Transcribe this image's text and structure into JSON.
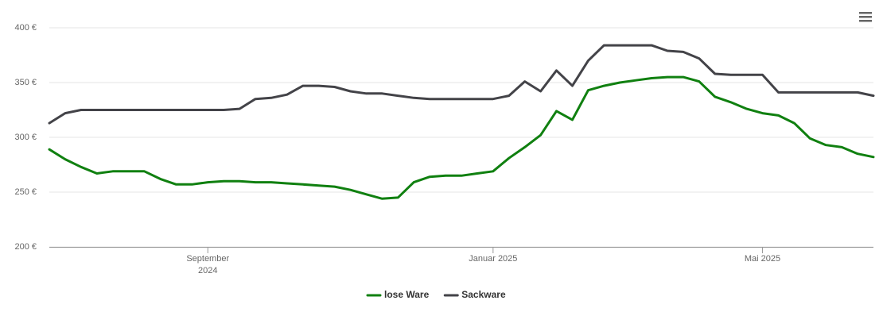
{
  "chart_data": {
    "type": "line",
    "categories": [
      null,
      null,
      null,
      null,
      null,
      null,
      null,
      null,
      null,
      null,
      "September 2024",
      null,
      null,
      null,
      null,
      null,
      null,
      null,
      null,
      null,
      null,
      null,
      null,
      null,
      null,
      null,
      null,
      null,
      "Januar 2025",
      null,
      null,
      null,
      null,
      null,
      null,
      null,
      null,
      null,
      null,
      null,
      null,
      null,
      null,
      null,
      null,
      "Mai 2025",
      null,
      null,
      null,
      null,
      null,
      null,
      null
    ],
    "series": [
      {
        "name": "lose Ware",
        "color": "#108010",
        "values": [
          289,
          280,
          273,
          267,
          269,
          269,
          269,
          262,
          257,
          257,
          259,
          260,
          260,
          259,
          259,
          258,
          257,
          256,
          255,
          252,
          248,
          244,
          245,
          259,
          264,
          265,
          265,
          267,
          269,
          281,
          291,
          302,
          324,
          316,
          343,
          347,
          350,
          352,
          354,
          355,
          355,
          351,
          337,
          332,
          326,
          322,
          320,
          313,
          299,
          293,
          291,
          285,
          282
        ]
      },
      {
        "name": "Sackware",
        "color": "#434348",
        "values": [
          313,
          322,
          325,
          325,
          325,
          325,
          325,
          325,
          325,
          325,
          325,
          325,
          326,
          335,
          336,
          339,
          347,
          347,
          346,
          342,
          340,
          340,
          338,
          336,
          335,
          335,
          335,
          335,
          335,
          338,
          351,
          342,
          361,
          347,
          370,
          384,
          384,
          384,
          384,
          379,
          378,
          372,
          358,
          357,
          357,
          357,
          341,
          341,
          341,
          341,
          341,
          341,
          338
        ]
      }
    ],
    "ylim": [
      200,
      400
    ],
    "yticks": [
      {
        "value": 200,
        "label": "200 €"
      },
      {
        "value": 250,
        "label": "250 €"
      },
      {
        "value": 300,
        "label": "300 €"
      },
      {
        "value": 350,
        "label": "350 €"
      },
      {
        "value": 400,
        "label": "400 €"
      }
    ],
    "grid": true,
    "legend": "bottom"
  }
}
